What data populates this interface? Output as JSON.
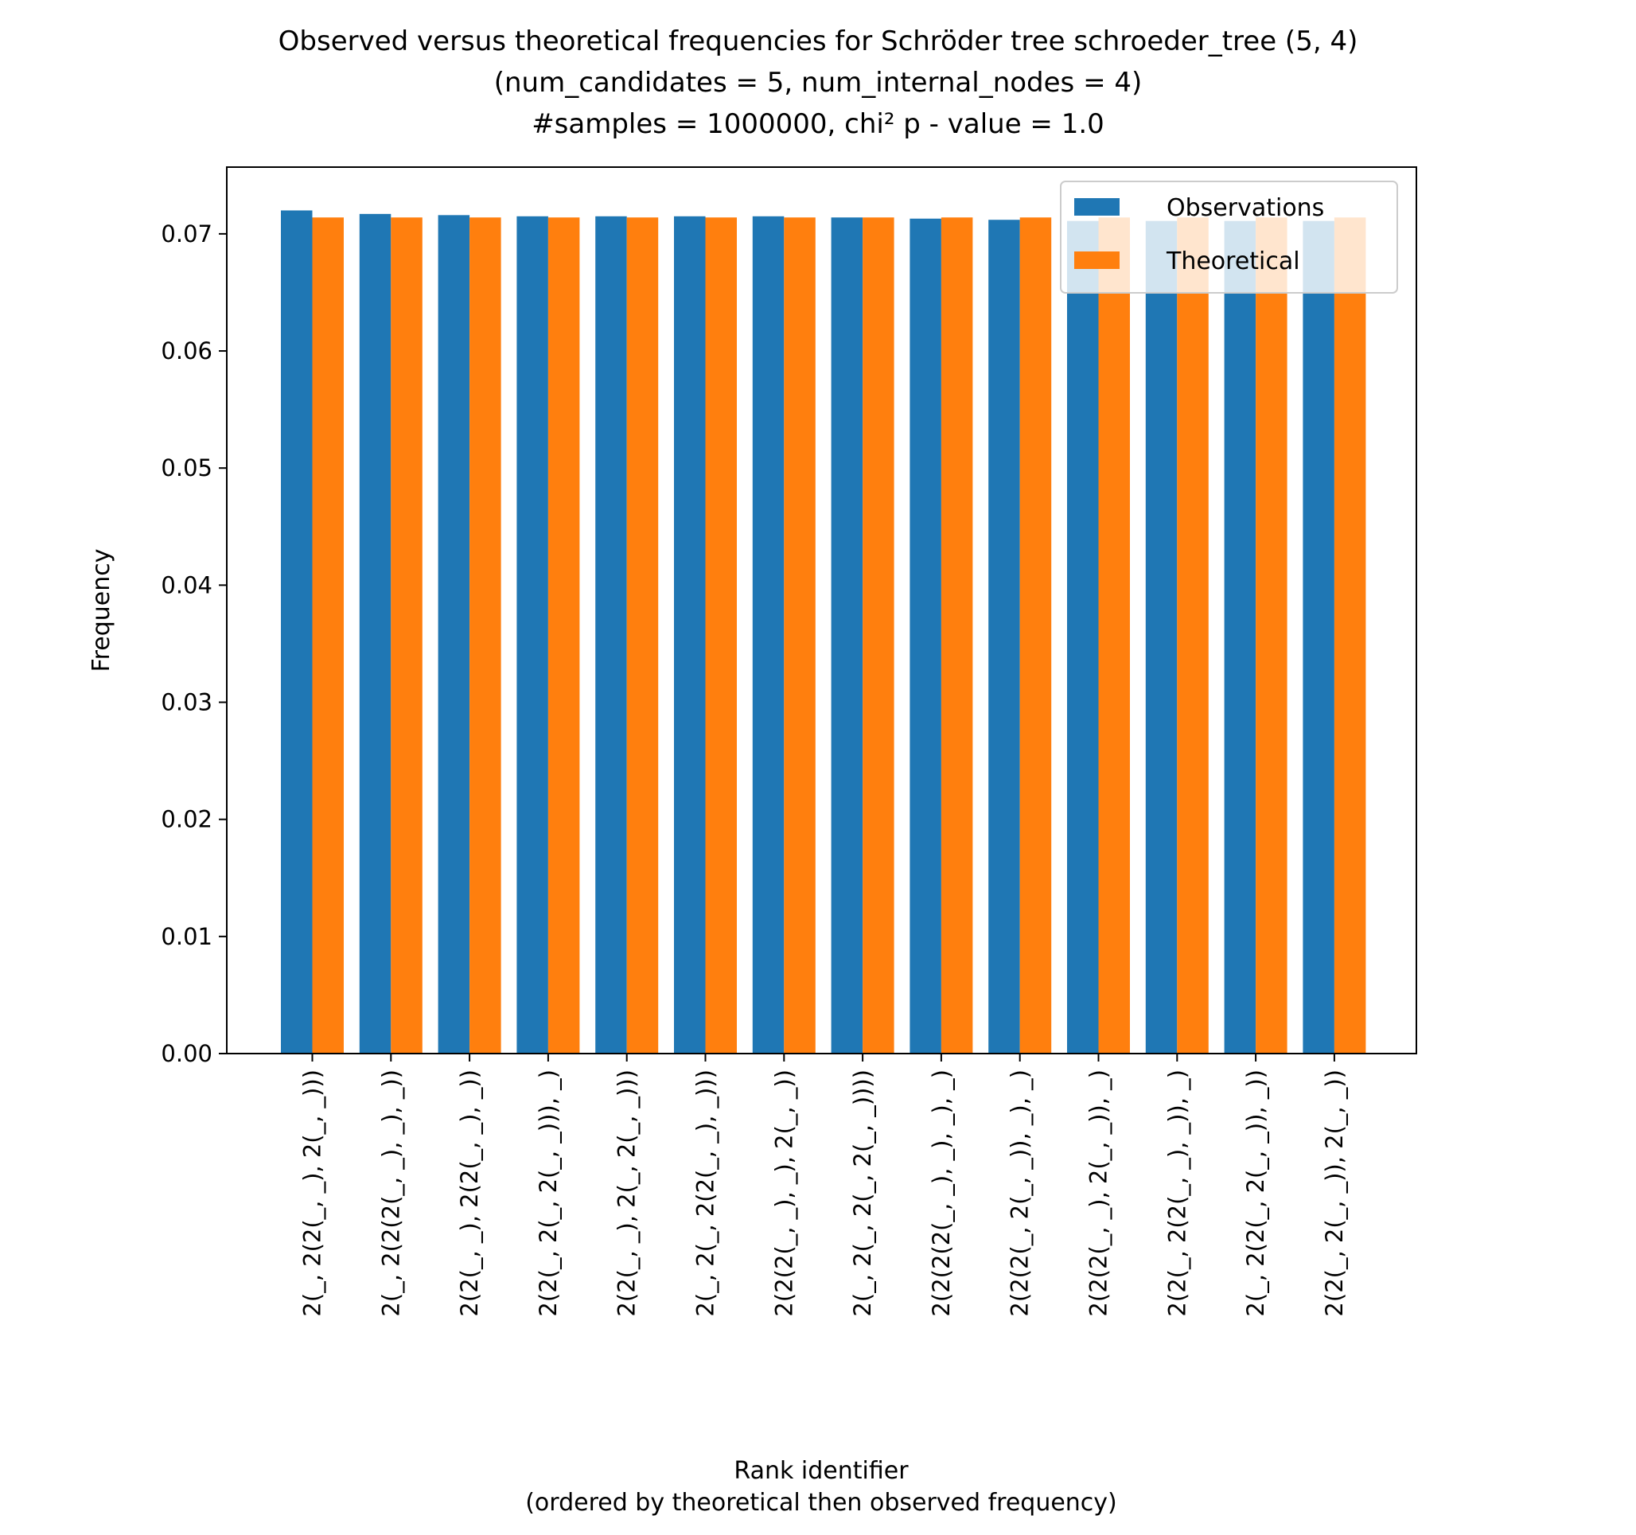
{
  "chart_data": {
    "type": "bar",
    "title_lines": [
      "Observed versus theoretical frequencies for Schröder tree schroeder_tree (5, 4)",
      "(num_candidates = 5, num_internal_nodes = 4)",
      "#samples = 1000000, chi² p - value = 1.0"
    ],
    "xlabel_lines": [
      "Rank identifier",
      "(ordered by theoretical then observed frequency)"
    ],
    "ylabel": "Frequency",
    "ylim": [
      0,
      0.0757
    ],
    "yticks": [
      "0.00",
      "0.01",
      "0.02",
      "0.03",
      "0.04",
      "0.05",
      "0.06",
      "0.07"
    ],
    "categories": [
      "2(_, 2(2(_, _), 2(_, _)))",
      "2(_, 2(2(2(_, _), _), _))",
      "2(2(_, _), 2(2(_, _), _))",
      "2(2(_, 2(_, 2(_, _))), _)",
      "2(2(_, _), 2(_, 2(_, _)))",
      "2(_, 2(_, 2(2(_, _), _)))",
      "2(2(2(_, _), _), 2(_, _))",
      "2(_, 2(_, 2(_, 2(_, _))))",
      "2(2(2(2(_, _), _), _), _)",
      "2(2(2(_, 2(_, _)), _), _)",
      "2(2(2(_, _), 2(_, _)), _)",
      "2(2(_, 2(2(_, _), _)), _)",
      "2(_, 2(2(_, 2(_, _)), _))",
      "2(2(_, 2(_, _)), 2(_, _))"
    ],
    "series": [
      {
        "name": "Observations",
        "color": "#1f77b4",
        "values": [
          0.072,
          0.0717,
          0.0716,
          0.0715,
          0.0715,
          0.0715,
          0.0715,
          0.0714,
          0.0713,
          0.0712,
          0.0711,
          0.0711,
          0.0711,
          0.0711
        ]
      },
      {
        "name": "Theoretical",
        "color": "#ff7f0e",
        "values": [
          0.0714,
          0.0714,
          0.0714,
          0.0714,
          0.0714,
          0.0714,
          0.0714,
          0.0714,
          0.0714,
          0.0714,
          0.0714,
          0.0714,
          0.0714,
          0.0714
        ]
      }
    ],
    "legend": {
      "position": "upper right",
      "frame": true
    },
    "grid": false
  }
}
